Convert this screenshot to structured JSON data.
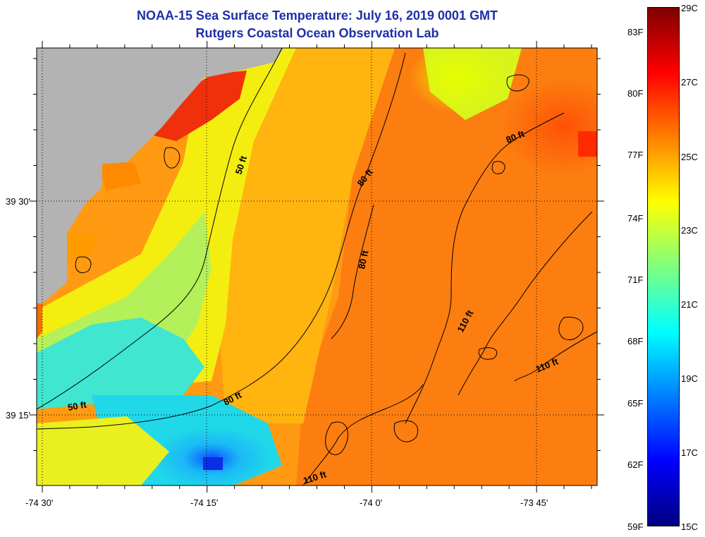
{
  "title": {
    "line1": "NOAA-15 Sea Surface Temperature:  July 16, 2019 0001 GMT",
    "line2": "Rutgers Coastal Ocean Observation Lab"
  },
  "axes": {
    "lat_labels": [
      "39 30'",
      "39 15'"
    ],
    "lon_labels": [
      "-74 30'",
      "-74 15'",
      "-74 0'",
      "-73 45'"
    ]
  },
  "contour_labels": [
    "50 ft",
    "50 ft",
    "80 ft",
    "80 ft",
    "80 ft",
    "80 ft",
    "110 ft",
    "110 ft"
  ],
  "colorbar": {
    "celsius_labels": [
      "29C",
      "27C",
      "25C",
      "23C",
      "21C",
      "19C",
      "17C",
      "15C"
    ],
    "fahrenheit_labels": [
      "83F",
      "80F",
      "77F",
      "74F",
      "71F",
      "68F",
      "65F",
      "62F",
      "59F"
    ],
    "colors": [
      "#00007f",
      "#0000ff",
      "#007fff",
      "#00ffff",
      "#7fff7f",
      "#ffff00",
      "#ff7f00",
      "#ff0000",
      "#7f0000"
    ]
  },
  "palette": {
    "land": "#b3b3b3",
    "title_color": "#1f2fa8"
  }
}
